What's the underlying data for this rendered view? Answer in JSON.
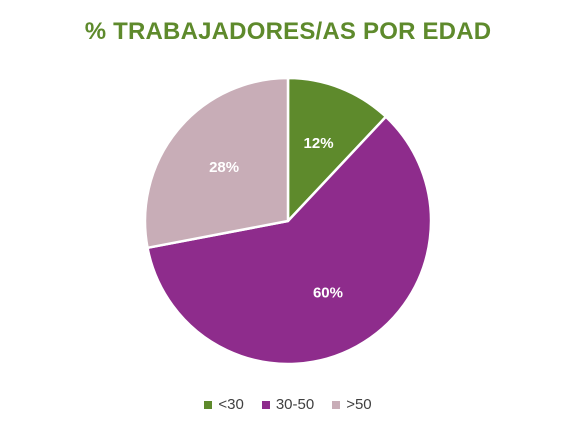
{
  "chart_data": {
    "type": "pie",
    "title": "% TRABAJADORES/AS POR EDAD",
    "categories": [
      "<30",
      "30-50",
      ">50"
    ],
    "values": [
      12,
      60,
      28
    ],
    "data_labels": [
      "12%",
      "60%",
      "28%"
    ],
    "colors": [
      "#5e8a2c",
      "#8e2c8c",
      "#c8adb7"
    ],
    "legend_position": "bottom"
  }
}
